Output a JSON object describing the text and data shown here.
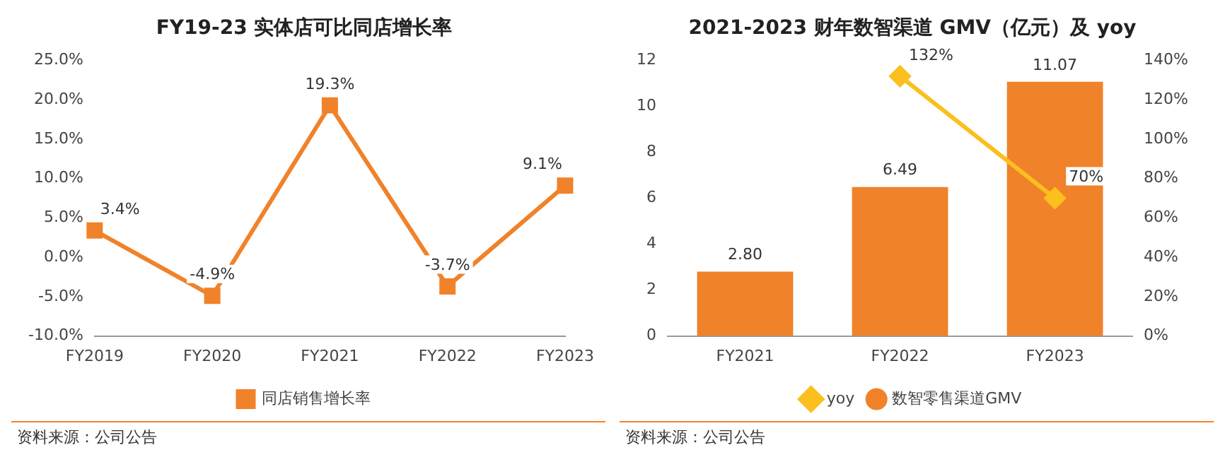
{
  "chart_data": [
    {
      "type": "line",
      "title": "FY19-23 实体店可比同店增长率",
      "categories": [
        "FY2019",
        "FY2020",
        "FY2021",
        "FY2022",
        "FY2023"
      ],
      "series": [
        {
          "name": "同店销售增长率",
          "color": "#f0822a",
          "values": [
            3.4,
            -4.9,
            19.3,
            -3.7,
            9.1
          ],
          "value_labels": [
            "3.4%",
            "-4.9%",
            "19.3%",
            "-3.7%",
            "9.1%"
          ]
        }
      ],
      "ylim": [
        -10,
        25
      ],
      "yticks": [
        {
          "value": -10,
          "label": "-10.0%"
        },
        {
          "value": -5,
          "label": "-5.0%"
        },
        {
          "value": 0,
          "label": "0.0%"
        },
        {
          "value": 5,
          "label": "5.0%"
        },
        {
          "value": 10,
          "label": "10.0%"
        },
        {
          "value": 15,
          "label": "15.0%"
        },
        {
          "value": 20,
          "label": "20.0%"
        },
        {
          "value": 25,
          "label": "25.0%"
        }
      ],
      "legend": "bottom",
      "marker": "square",
      "annotations": [
        "资料来源：公司公告"
      ]
    },
    {
      "type": "bar",
      "title": "2021-2023 财年数智渠道 GMV（亿元）及 yoy",
      "categories": [
        "FY2021",
        "FY2022",
        "FY2023"
      ],
      "series": [
        {
          "name": "数智零售渠道GMV",
          "color": "#f0822a",
          "values": [
            2.8,
            6.49,
            11.07
          ],
          "value_labels": [
            "2.80",
            "6.49",
            "11.07"
          ]
        },
        {
          "name": "yoy",
          "type": "line",
          "axis": "y2",
          "color": "#fbbf1e",
          "values": [
            null,
            132,
            70
          ],
          "value_labels": [
            null,
            "132%",
            "70%"
          ]
        }
      ],
      "ylim": [
        0,
        12
      ],
      "yticks": [
        0,
        2,
        4,
        6,
        8,
        10,
        12
      ],
      "y2lim": [
        0,
        140
      ],
      "y2ticks": [
        {
          "value": 0,
          "label": "0%"
        },
        {
          "value": 20,
          "label": "20%"
        },
        {
          "value": 40,
          "label": "40%"
        },
        {
          "value": 60,
          "label": "60%"
        },
        {
          "value": 80,
          "label": "80%"
        },
        {
          "value": 100,
          "label": "100%"
        },
        {
          "value": 120,
          "label": "120%"
        },
        {
          "value": 140,
          "label": "140%"
        }
      ],
      "legend": "bottom",
      "marker": "diamond",
      "annotations": [
        "资料来源：公司公告"
      ]
    }
  ]
}
